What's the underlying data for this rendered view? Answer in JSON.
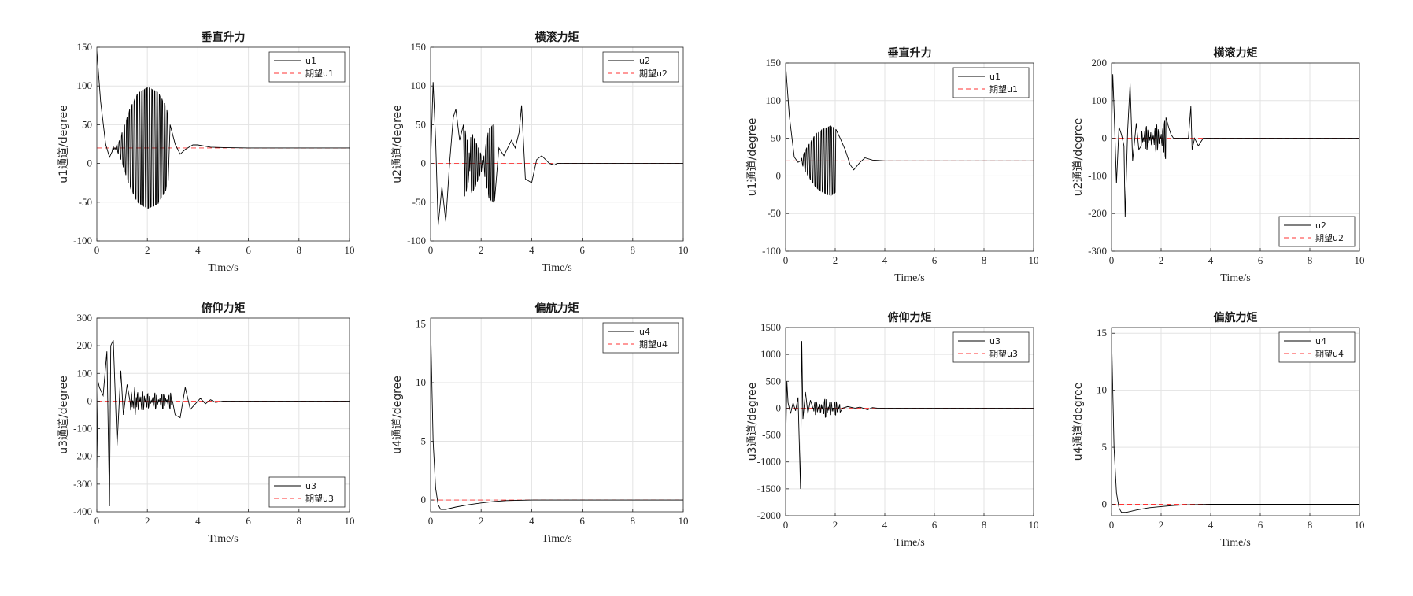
{
  "chart_data": [
    {
      "type": "line",
      "title": "垂直升力",
      "xlabel": "Time/s",
      "ylabel": "u1通道/degree",
      "xlim": [
        0,
        10
      ],
      "ylim": [
        -100,
        150
      ],
      "xticks": [
        "0",
        "2",
        "4",
        "6",
        "8",
        "10"
      ],
      "yticks": [
        "150",
        "100",
        "50",
        "0",
        "-50",
        "-100"
      ],
      "grid": true,
      "legend": "top-right",
      "series": [
        {
          "name": "u1",
          "color": "#000000",
          "dash": "solid",
          "x": [
            0,
            0.15,
            0.35,
            0.5,
            0.6,
            0.9,
            1.3,
            1.6,
            2.0,
            2.4,
            2.7,
            2.9,
            3.1,
            3.3,
            3.5,
            3.8,
            4.0,
            4.5,
            5,
            6,
            8,
            10
          ],
          "y": [
            145,
            80,
            25,
            8,
            15,
            30,
            70,
            90,
            98,
            92,
            75,
            50,
            25,
            12,
            18,
            24,
            24,
            21,
            20.5,
            20,
            20,
            20
          ],
          "osc": {
            "from": 0.65,
            "to": 2.8,
            "step": 0.05
          }
        },
        {
          "name": "期望u1",
          "color": "#ff3333",
          "dash": "dashed",
          "x": [
            0,
            10
          ],
          "y": [
            20,
            20
          ]
        }
      ]
    },
    {
      "type": "line",
      "title": "横滚力矩",
      "xlabel": "Time/s",
      "ylabel": "u2通道/degree",
      "xlim": [
        0,
        10
      ],
      "ylim": [
        -100,
        150
      ],
      "xticks": [
        "0",
        "2",
        "4",
        "6",
        "8",
        "10"
      ],
      "yticks": [
        "150",
        "100",
        "50",
        "0",
        "-50",
        "-100"
      ],
      "grid": true,
      "legend": "top-right",
      "series": [
        {
          "name": "u2",
          "color": "#000000",
          "dash": "solid",
          "x": [
            0,
            0.1,
            0.2,
            0.3,
            0.45,
            0.6,
            0.75,
            0.9,
            1.0,
            1.15,
            1.3,
            1.5,
            1.6,
            1.75,
            2.0,
            2.3,
            2.5,
            2.7,
            2.9,
            3.2,
            3.35,
            3.5,
            3.6,
            3.75,
            4.0,
            4.2,
            4.4,
            4.7,
            4.9,
            5.0,
            6,
            8,
            10
          ],
          "y": [
            0,
            105,
            30,
            -80,
            -30,
            -75,
            0,
            60,
            70,
            30,
            50,
            20,
            -40,
            -30,
            -10,
            45,
            50,
            20,
            10,
            30,
            20,
            40,
            75,
            -20,
            -25,
            5,
            10,
            0,
            -2,
            0,
            0,
            0,
            0
          ],
          "osc": {
            "from": 1.35,
            "to": 2.55,
            "step": 0.04
          }
        },
        {
          "name": "期望u2",
          "color": "#ff3333",
          "dash": "dashed",
          "x": [
            0,
            10
          ],
          "y": [
            0,
            0
          ]
        }
      ]
    },
    {
      "type": "line",
      "title": "俯仰力矩",
      "xlabel": "Time/s",
      "ylabel": "u3通道/degree",
      "xlim": [
        0,
        10
      ],
      "ylim": [
        -400,
        300
      ],
      "xticks": [
        "0",
        "2",
        "4",
        "6",
        "8",
        "10"
      ],
      "yticks": [
        "300",
        "200",
        "100",
        "0",
        "-100",
        "-200",
        "-300",
        "-400"
      ],
      "grid": true,
      "legend": "bottom-right",
      "series": [
        {
          "name": "u3",
          "color": "#000000",
          "dash": "solid",
          "x": [
            0,
            0.05,
            0.1,
            0.25,
            0.4,
            0.5,
            0.55,
            0.65,
            0.8,
            0.95,
            1.05,
            1.2,
            1.35,
            1.5,
            1.6,
            1.8,
            2.0,
            2.3,
            2.6,
            2.9,
            3.1,
            3.3,
            3.5,
            3.7,
            3.9,
            4.1,
            4.3,
            4.5,
            4.7,
            5.0,
            6,
            8,
            10
          ],
          "y": [
            -240,
            70,
            50,
            20,
            180,
            -380,
            200,
            220,
            -160,
            110,
            -50,
            60,
            -40,
            50,
            -40,
            40,
            -30,
            30,
            -30,
            30,
            -50,
            -60,
            50,
            -30,
            -10,
            10,
            -10,
            5,
            -5,
            0,
            0,
            0,
            0
          ],
          "osc": {
            "from": 1.3,
            "to": 3.0,
            "step": 0.04
          }
        },
        {
          "name": "期望u3",
          "color": "#ff3333",
          "dash": "dashed",
          "x": [
            0,
            10
          ],
          "y": [
            0,
            0
          ]
        }
      ]
    },
    {
      "type": "line",
      "title": "偏航力矩",
      "xlabel": "Time/s",
      "ylabel": "u4通道/degree",
      "xlim": [
        0,
        10
      ],
      "ylim": [
        -1,
        15.5
      ],
      "xticks": [
        "0",
        "2",
        "4",
        "6",
        "8",
        "10"
      ],
      "yticks": [
        "15",
        "10",
        "5",
        "0"
      ],
      "grid": true,
      "legend": "top-right",
      "series": [
        {
          "name": "u4",
          "color": "#000000",
          "dash": "solid",
          "x": [
            0,
            0.05,
            0.1,
            0.2,
            0.3,
            0.4,
            0.6,
            1.0,
            1.5,
            2.0,
            2.5,
            3.0,
            4.0,
            5.0,
            10
          ],
          "y": [
            15,
            10,
            5,
            1,
            -0.4,
            -0.8,
            -0.8,
            -0.6,
            -0.4,
            -0.25,
            -0.12,
            -0.05,
            0,
            0,
            0
          ]
        },
        {
          "name": "期望u4",
          "color": "#ff3333",
          "dash": "dashed",
          "x": [
            0,
            10
          ],
          "y": [
            0,
            0
          ]
        }
      ]
    },
    {
      "type": "line",
      "title": "垂直升力",
      "xlabel": "Time/s",
      "ylabel": "u1通道/degree",
      "xlim": [
        0,
        10
      ],
      "ylim": [
        -100,
        150
      ],
      "xticks": [
        "0",
        "2",
        "4",
        "6",
        "8",
        "10"
      ],
      "yticks": [
        "150",
        "100",
        "50",
        "0",
        "-50",
        "-100"
      ],
      "grid": true,
      "legend": "top-right",
      "series": [
        {
          "name": "u1",
          "color": "#000000",
          "dash": "solid",
          "x": [
            0,
            0.15,
            0.35,
            0.5,
            0.6,
            0.8,
            1.0,
            1.2,
            1.5,
            1.8,
            2.0,
            2.2,
            2.4,
            2.6,
            2.75,
            3.0,
            3.2,
            3.5,
            4.0,
            5,
            6,
            8,
            10
          ],
          "y": [
            148,
            80,
            25,
            18,
            20,
            35,
            45,
            55,
            62,
            66,
            62,
            50,
            35,
            15,
            8,
            18,
            24,
            21,
            20,
            20,
            20,
            20,
            20
          ],
          "osc": {
            "from": 0.6,
            "to": 2.05,
            "step": 0.05
          }
        },
        {
          "name": "期望u1",
          "color": "#ff3333",
          "dash": "dashed",
          "x": [
            0,
            10
          ],
          "y": [
            20,
            20
          ]
        }
      ]
    },
    {
      "type": "line",
      "title": "横滚力矩",
      "xlabel": "Time/s",
      "ylabel": "u2通道/degree",
      "xlim": [
        0,
        10
      ],
      "ylim": [
        -300,
        200
      ],
      "xticks": [
        "0",
        "2",
        "4",
        "6",
        "8",
        "10"
      ],
      "yticks": [
        "200",
        "100",
        "0",
        "-100",
        "-200",
        "-300"
      ],
      "grid": true,
      "legend": "bottom-right",
      "series": [
        {
          "name": "u2",
          "color": "#000000",
          "dash": "solid",
          "x": [
            0,
            0.05,
            0.1,
            0.2,
            0.3,
            0.4,
            0.5,
            0.55,
            0.65,
            0.75,
            0.85,
            1.0,
            1.1,
            1.2,
            1.4,
            1.6,
            1.8,
            2.0,
            2.2,
            2.3,
            2.4,
            2.5,
            2.7,
            3.1,
            3.2,
            3.25,
            3.35,
            3.5,
            3.6,
            3.7,
            3.8,
            4.0,
            6,
            8,
            10
          ],
          "y": [
            0,
            170,
            80,
            -120,
            30,
            10,
            -20,
            -210,
            20,
            145,
            -60,
            40,
            -30,
            20,
            -35,
            20,
            -40,
            10,
            60,
            30,
            10,
            0,
            0,
            0,
            85,
            -30,
            0,
            -20,
            -10,
            0,
            0,
            0,
            0,
            0,
            0
          ],
          "osc": {
            "from": 1.2,
            "to": 2.2,
            "step": 0.035
          }
        },
        {
          "name": "期望u2",
          "color": "#ff3333",
          "dash": "dashed",
          "x": [
            0,
            10
          ],
          "y": [
            0,
            0
          ]
        }
      ]
    },
    {
      "type": "line",
      "title": "俯仰力矩",
      "xlabel": "Time/s",
      "ylabel": "u3通道/degree",
      "xlim": [
        0,
        10
      ],
      "ylim": [
        -2000,
        1500
      ],
      "xticks": [
        "0",
        "2",
        "4",
        "6",
        "8",
        "10"
      ],
      "yticks": [
        "1500",
        "1000",
        "500",
        "0",
        "-500",
        "-1000",
        "-1500",
        "-2000"
      ],
      "grid": true,
      "legend": "top-right",
      "series": [
        {
          "name": "u3",
          "color": "#000000",
          "dash": "solid",
          "x": [
            0,
            0.05,
            0.1,
            0.2,
            0.3,
            0.4,
            0.5,
            0.6,
            0.65,
            0.7,
            0.8,
            0.9,
            1.0,
            1.2,
            1.4,
            1.6,
            1.8,
            2.0,
            2.2,
            2.3,
            2.5,
            2.8,
            3.0,
            3.3,
            3.5,
            3.7,
            4.0,
            6,
            8,
            10
          ],
          "y": [
            -700,
            500,
            100,
            -100,
            100,
            -50,
            200,
            -1500,
            1250,
            -200,
            300,
            -100,
            150,
            -150,
            100,
            -200,
            150,
            -150,
            100,
            0,
            30,
            0,
            20,
            -30,
            10,
            0,
            0,
            0,
            0,
            0
          ],
          "osc": {
            "from": 1.1,
            "to": 2.2,
            "step": 0.04
          }
        },
        {
          "name": "期望u3",
          "color": "#ff3333",
          "dash": "dashed",
          "x": [
            0,
            10
          ],
          "y": [
            0,
            0
          ]
        }
      ]
    },
    {
      "type": "line",
      "title": "偏航力矩",
      "xlabel": "Time/s",
      "ylabel": "u4通道/degree",
      "xlim": [
        0,
        10
      ],
      "ylim": [
        -1,
        15.5
      ],
      "xticks": [
        "0",
        "2",
        "4",
        "6",
        "8",
        "10"
      ],
      "yticks": [
        "15",
        "10",
        "5",
        "0"
      ],
      "grid": true,
      "legend": "top-right",
      "series": [
        {
          "name": "u4",
          "color": "#000000",
          "dash": "solid",
          "x": [
            0,
            0.05,
            0.1,
            0.2,
            0.3,
            0.4,
            0.6,
            1.0,
            1.5,
            2.0,
            2.5,
            3.0,
            4.0,
            5.0,
            10
          ],
          "y": [
            15,
            10,
            5,
            1,
            -0.3,
            -0.7,
            -0.7,
            -0.5,
            -0.3,
            -0.2,
            -0.1,
            -0.05,
            0,
            0,
            0
          ]
        },
        {
          "name": "期望u4",
          "color": "#ff3333",
          "dash": "dashed",
          "x": [
            0,
            10
          ],
          "y": [
            0,
            0
          ]
        }
      ]
    }
  ]
}
